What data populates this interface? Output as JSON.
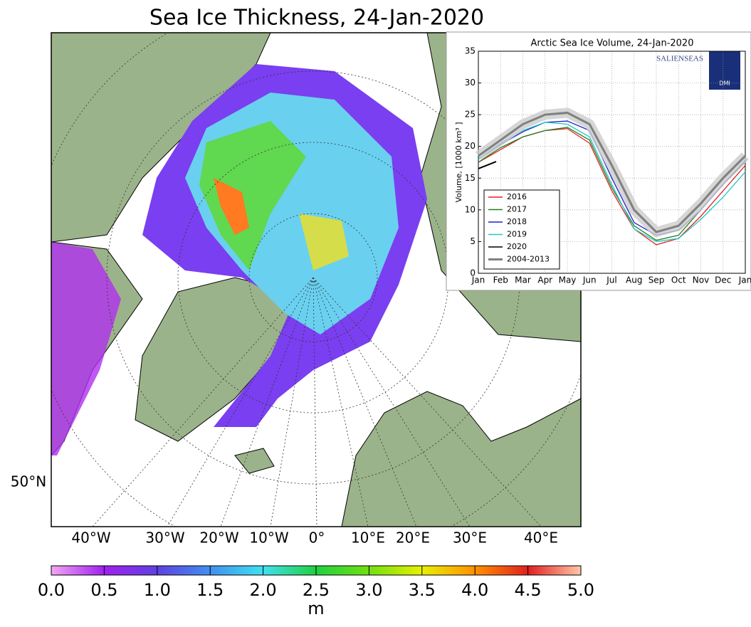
{
  "map": {
    "title": "Sea Ice Thickness, 24-Jan-2020",
    "lon_labels": [
      "40°W",
      "30°W",
      "20°W",
      "10°W",
      "0°",
      "10°E",
      "20°E",
      "30°E",
      "40°E"
    ],
    "lat_labels": [
      "50°N"
    ],
    "colorbar": {
      "label": "m",
      "ticks": [
        {
          "value": 0,
          "label": "0.0"
        },
        {
          "value": 0.5,
          "label": "0.5"
        },
        {
          "value": 1,
          "label": "1.0"
        },
        {
          "value": 1.5,
          "label": "1.5"
        },
        {
          "value": 2,
          "label": "2.0"
        },
        {
          "value": 2.5,
          "label": "2.5"
        },
        {
          "value": 3,
          "label": "3.0"
        },
        {
          "value": 3.5,
          "label": "3.5"
        },
        {
          "value": 4,
          "label": "4.0"
        },
        {
          "value": 4.5,
          "label": "4.5"
        },
        {
          "value": 5,
          "label": "5.0"
        }
      ],
      "lim": [
        0,
        5
      ],
      "colors": [
        "#f2a6f2",
        "#a020f0",
        "#6040e0",
        "#4090f0",
        "#40e0f0",
        "#20d040",
        "#70e010",
        "#e8f000",
        "#ff9000",
        "#e02020",
        "#ffc8a8"
      ]
    }
  },
  "chart_data": {
    "type": "line",
    "title": "Arctic Sea Ice Volume, 24-Jan-2020",
    "ylabel": "Volume, [1000 km³ ]",
    "logos": [
      "SALIENSEAS",
      "DMI"
    ],
    "x": [
      0,
      1,
      2,
      3,
      4,
      5,
      6,
      7,
      8,
      9,
      10,
      11,
      12
    ],
    "xlim": [
      0,
      12
    ],
    "xticks": [
      {
        "value": 0,
        "label": "Jan"
      },
      {
        "value": 1,
        "label": "Feb"
      },
      {
        "value": 2,
        "label": "Mar"
      },
      {
        "value": 3,
        "label": "Apr"
      },
      {
        "value": 4,
        "label": "May"
      },
      {
        "value": 5,
        "label": "Jun"
      },
      {
        "value": 6,
        "label": "Jul"
      },
      {
        "value": 7,
        "label": "Aug"
      },
      {
        "value": 8,
        "label": "Sep"
      },
      {
        "value": 9,
        "label": "Oct"
      },
      {
        "value": 10,
        "label": "Nov"
      },
      {
        "value": 11,
        "label": "Dec"
      },
      {
        "value": 12,
        "label": "Jan"
      }
    ],
    "ylim": [
      0,
      35
    ],
    "yticks": [
      0,
      5,
      10,
      15,
      20,
      25,
      30,
      35
    ],
    "grid": true,
    "legend": "lower left",
    "series": [
      {
        "name": "2016",
        "color": "#e02020",
        "values": [
          17.5,
          19.5,
          21.5,
          22.5,
          22.8,
          20.5,
          13,
          7,
          4.5,
          5.5,
          9,
          13,
          17
        ]
      },
      {
        "name": "2017",
        "color": "#208020",
        "values": [
          17.5,
          19.8,
          21.5,
          22.5,
          23,
          21,
          13.5,
          7.5,
          5.2,
          6,
          10,
          14,
          17.5
        ]
      },
      {
        "name": "2018",
        "color": "#2020d0",
        "values": [
          18,
          20.3,
          22.3,
          23.8,
          24,
          22.5,
          15,
          8,
          6,
          6.8,
          10,
          14,
          17.8
        ]
      },
      {
        "name": "2019",
        "color": "#20c8c8",
        "values": [
          18,
          20.5,
          22.5,
          23.8,
          23.5,
          21.5,
          14,
          7,
          5,
          5.5,
          8.5,
          12,
          16
        ]
      },
      {
        "name": "2020",
        "color": "#000000",
        "x": [
          0,
          0.8
        ],
        "values": [
          16.5,
          17.6
        ]
      },
      {
        "name": "2004-2013",
        "color": "#808080",
        "values": [
          18.5,
          21,
          23.5,
          25,
          25.3,
          23.5,
          17,
          10,
          6.5,
          7.5,
          11,
          15,
          18.5
        ]
      }
    ]
  }
}
